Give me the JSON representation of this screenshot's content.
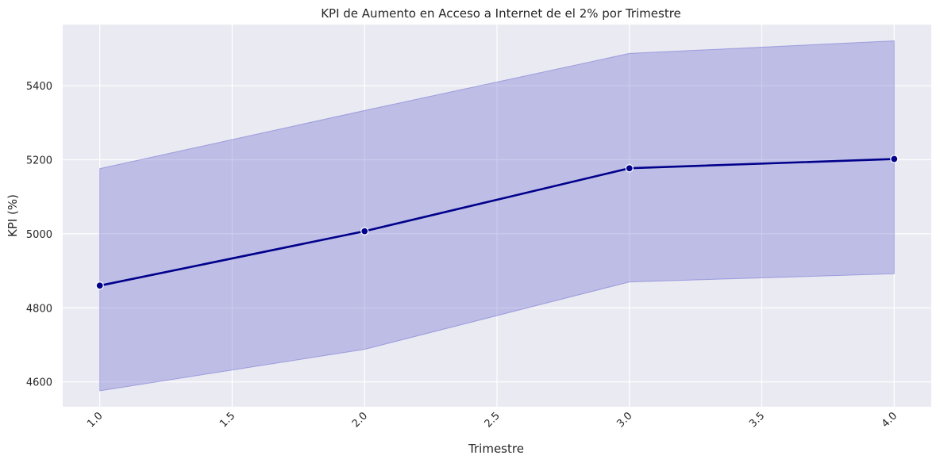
{
  "chart_data": {
    "type": "line",
    "title": "KPI de Aumento en Acceso a Internet de el 2% por Trimestre",
    "xlabel": "Trimestre",
    "ylabel": "KPI (%)",
    "xlim": [
      0.86,
      4.14
    ],
    "ylim": [
      4533,
      5565
    ],
    "x_ticks": [
      1.0,
      1.5,
      2.0,
      2.5,
      3.0,
      3.5,
      4.0
    ],
    "x_tick_labels": [
      "1.0",
      "1.5",
      "2.0",
      "2.5",
      "3.0",
      "3.5",
      "4.0"
    ],
    "y_ticks": [
      4600,
      4800,
      5000,
      5200,
      5400
    ],
    "y_tick_labels": [
      "4600",
      "4800",
      "5000",
      "5200",
      "5400"
    ],
    "grid": true,
    "series": [
      {
        "x": [
          1,
          2,
          3,
          4
        ],
        "values": [
          4860,
          5007,
          5177,
          5202
        ],
        "band_lower": [
          4576,
          4688,
          4870,
          4892
        ],
        "band_upper": [
          5176,
          5333,
          5487,
          5521
        ],
        "color": "#00008b",
        "band_color": "#6a6ad0"
      }
    ]
  },
  "colors": {
    "background": "#eaeaf2",
    "grid": "#ffffff",
    "line": "#00008b",
    "band": "#6a6ad0"
  }
}
